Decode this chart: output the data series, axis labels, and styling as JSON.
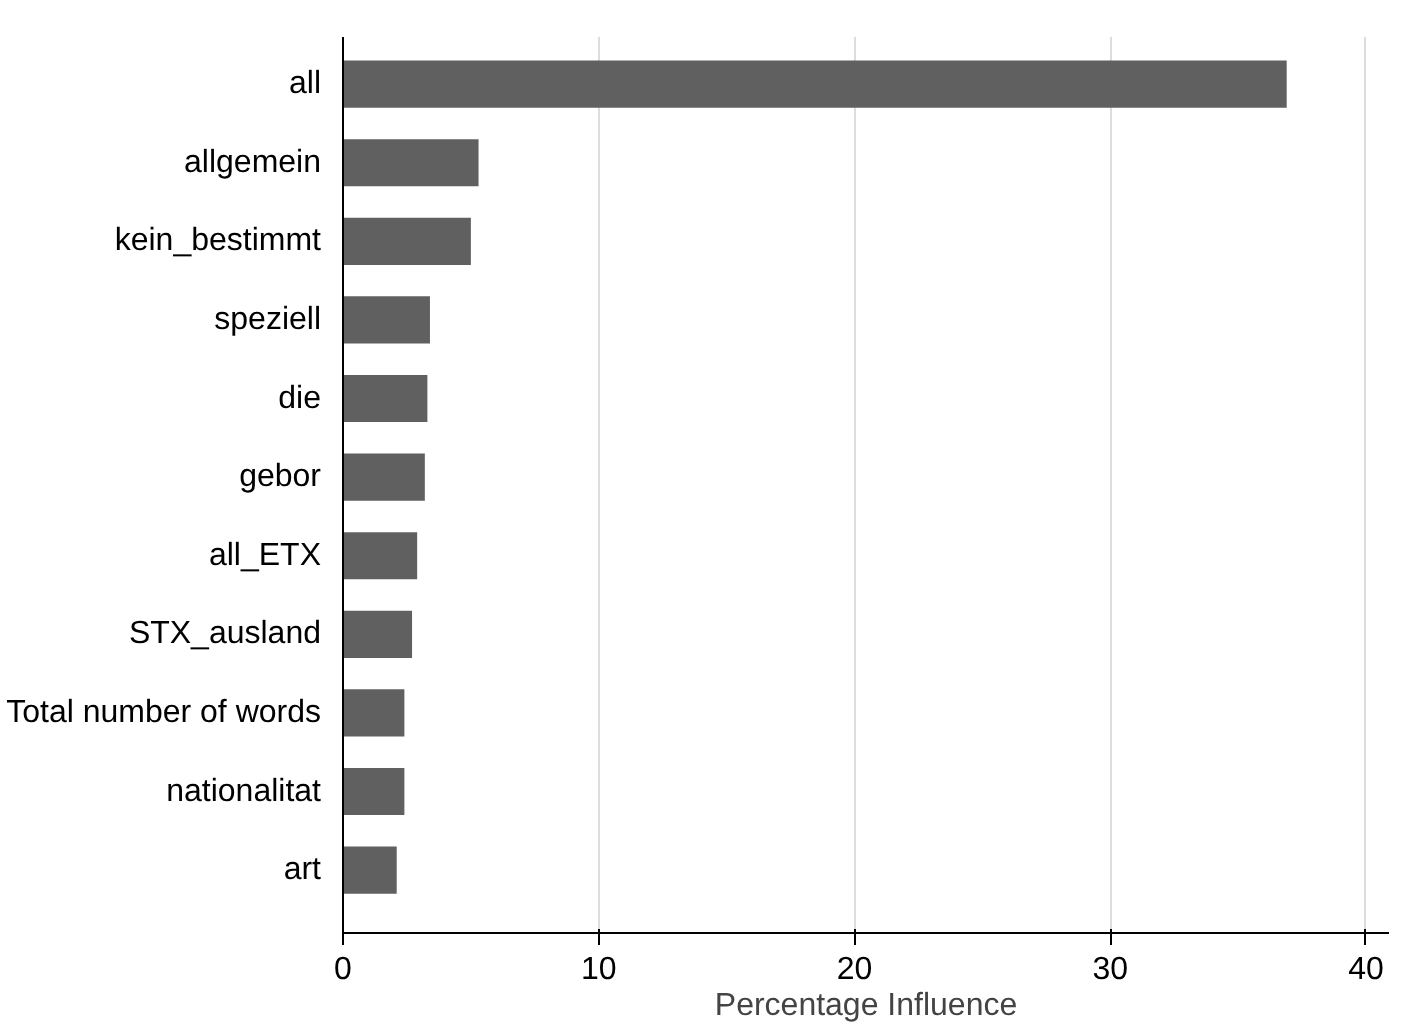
{
  "chart_data": {
    "type": "bar",
    "orientation": "horizontal",
    "xlabel": "Percentage Influence",
    "categories": [
      "all",
      "allgemein",
      "kein_bestimmt",
      "speziell",
      "die",
      "gebor",
      "all_ETX",
      "STX_ausland",
      "Total number of words",
      "nationalitat",
      "art"
    ],
    "values": [
      36.9,
      5.3,
      5.0,
      3.4,
      3.3,
      3.2,
      2.9,
      2.7,
      2.4,
      2.4,
      2.1
    ],
    "color": "#606060",
    "xlim": [
      0,
      40.9
    ],
    "xticks": [
      0,
      10,
      20,
      30,
      40
    ],
    "grid": "x"
  }
}
